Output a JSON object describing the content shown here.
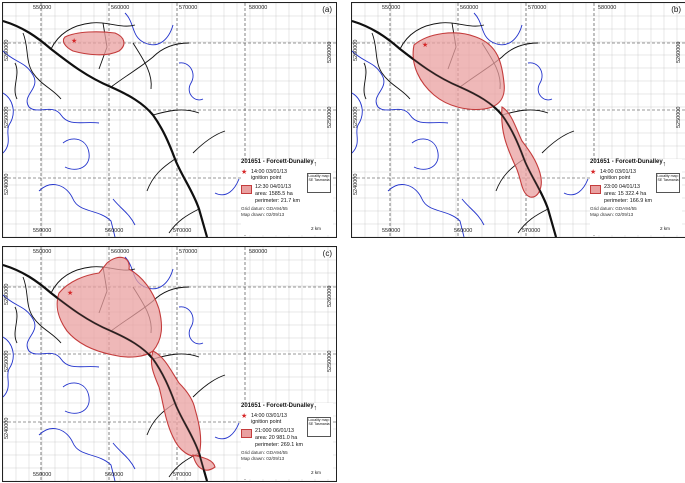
{
  "panels": [
    {
      "id": "a",
      "label": "(a)",
      "coords": {
        "top": [
          "550000",
          "560000",
          "570000",
          "580000"
        ],
        "bottom": [
          "550000",
          "560000",
          "570000"
        ],
        "left": [
          "5260000",
          "5250000",
          "5240000"
        ],
        "right": [
          "5260000",
          "5250000"
        ]
      },
      "legend": {
        "title": "201651 - Forcett-Dunalley",
        "ignition_time": "14:00 03/01/13",
        "ignition_label": "ignition point",
        "extent_time": "12:30 04/01/13",
        "area_label": "area:",
        "area_value": "1585.5 ha",
        "perimeter_label": "perimeter:",
        "perimeter_value": "21.7 km",
        "locality_label": "Locality map: SE Tasmania",
        "grid_datum": "Grid datum: GDA94/55",
        "map_drawn": "Map drawn: 02/09/13",
        "scale": "2 km"
      }
    },
    {
      "id": "b",
      "label": "(b)",
      "coords": {
        "top": [
          "550000",
          "560000",
          "570000",
          "580000"
        ],
        "bottom": [
          "550000",
          "560000",
          "570000"
        ],
        "left": [
          "5260000",
          "5250000",
          "5240000"
        ],
        "right": [
          "5260000",
          "5250000"
        ]
      },
      "legend": {
        "title": "201651 - Forcett-Dunalley",
        "ignition_time": "14:00 03/01/13",
        "ignition_label": "ignition point",
        "extent_time": "23:00 04/01/13",
        "area_label": "area:",
        "area_value": "15 322.4 ha",
        "perimeter_label": "perimeter:",
        "perimeter_value": "166.9 km",
        "locality_label": "Locality map: SE Tasmania",
        "grid_datum": "Grid datum: GDA94/55",
        "map_drawn": "Map drawn: 02/09/13",
        "scale": "2 km"
      }
    },
    {
      "id": "c",
      "label": "(c)",
      "coords": {
        "top": [
          "550000",
          "560000",
          "570000",
          "580000"
        ],
        "bottom": [
          "550000",
          "560000",
          "570000"
        ],
        "left": [
          "5260000",
          "5250000",
          "5240000"
        ],
        "right": [
          "5260000",
          "5250000"
        ]
      },
      "legend": {
        "title": "201651 - Forcett-Dunalley",
        "ignition_time": "14:00 03/01/13",
        "ignition_label": "ignition point",
        "extent_time": "21:000 06/01/13",
        "area_label": "area:",
        "area_value": "20 981.0 ha",
        "perimeter_label": "perimeter:",
        "perimeter_value": "269.1 km",
        "locality_label": "Locality map: SE Tasmania",
        "grid_datum": "Grid datum: GDA94/55",
        "map_drawn": "Map drawn: 02/09/13",
        "scale": "2 km"
      }
    }
  ],
  "colors": {
    "fire_fill": "#e9a0a0",
    "fire_edge": "#c43c3c",
    "coast": "#2233cc",
    "roads": "#111111",
    "grid": "#bbbbbb"
  }
}
